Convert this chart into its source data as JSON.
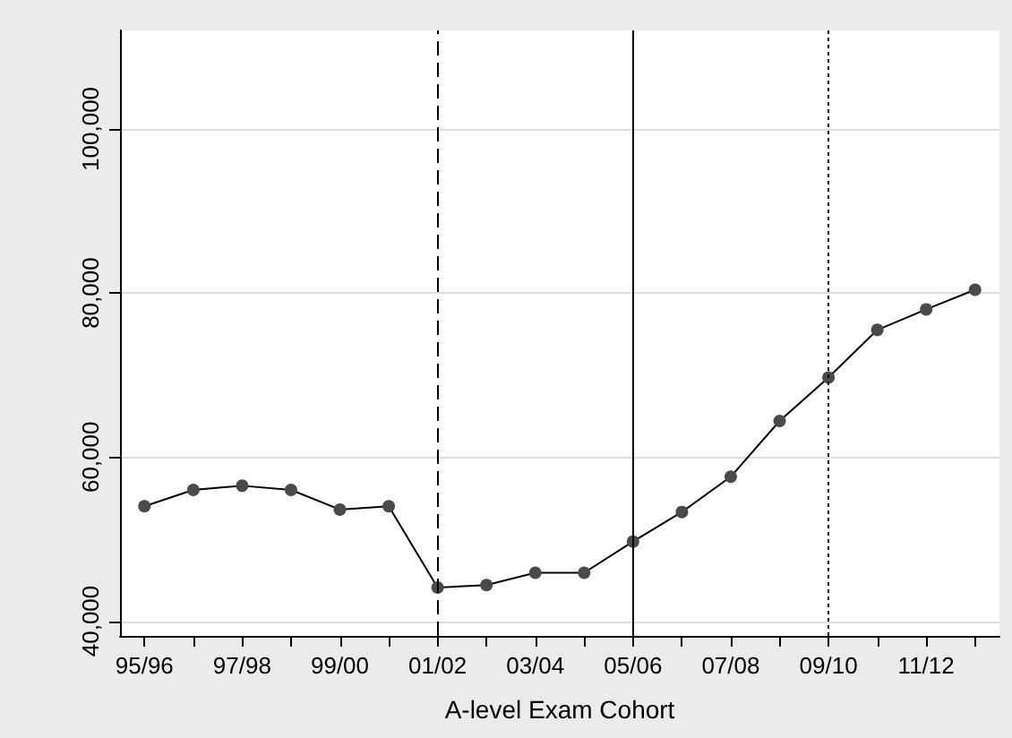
{
  "chart_data": {
    "type": "line",
    "xlabel": "A-level Exam Cohort",
    "categories": [
      "95/96",
      null,
      "97/98",
      null,
      "99/00",
      null,
      "01/02",
      null,
      "03/04",
      null,
      "05/06",
      null,
      "07/08",
      null,
      "09/10",
      null,
      "11/12",
      null
    ],
    "series": [
      {
        "color": "#4a4a4a",
        "values": [
          54000,
          56000,
          56500,
          56000,
          53600,
          54000,
          44100,
          44400,
          45900,
          45900,
          49700,
          53300,
          57600,
          64400,
          69700,
          75500,
          78000,
          80400
        ]
      }
    ],
    "ylim": [
      38200,
      112000
    ],
    "yticks": [
      {
        "value": 40000,
        "label": "40,000"
      },
      {
        "value": 60000,
        "label": "60,000"
      },
      {
        "value": 80000,
        "label": "80,000"
      },
      {
        "value": 100000,
        "label": "100,000"
      }
    ],
    "ref_lines": [
      {
        "axis": "x",
        "value": "01/02",
        "line_style": "dashed",
        "color": "#000000"
      },
      {
        "axis": "x",
        "value": "05/06",
        "line_style": "solid",
        "color": "#000000"
      },
      {
        "axis": "x",
        "value": "09/10",
        "line_style": "dotted",
        "color": "#000000"
      }
    ],
    "grid": "y",
    "marker": "circle",
    "line_style": "solid"
  }
}
